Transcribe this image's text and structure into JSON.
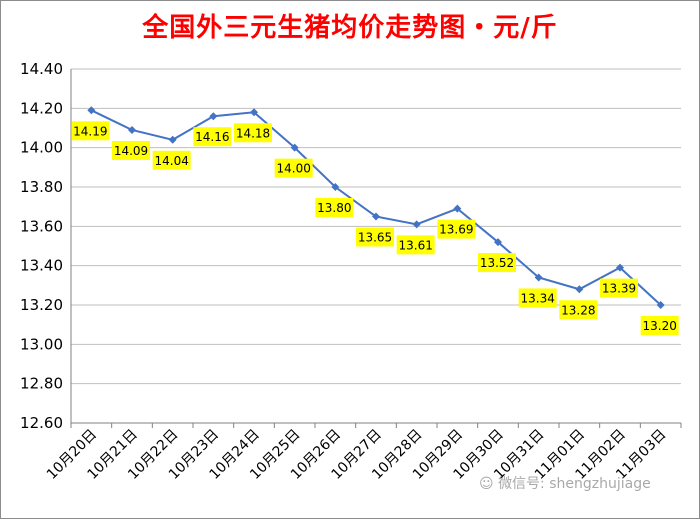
{
  "chart_data": {
    "type": "line",
    "title": "全国外三元生猪均价走势图・元/斤",
    "categories": [
      "10月20日",
      "10月21日",
      "10月22日",
      "10月23日",
      "10月24日",
      "10月25日",
      "10月26日",
      "10月27日",
      "10月28日",
      "10月29日",
      "10月30日",
      "10月31日",
      "11月01日",
      "11月02日",
      "11月03日"
    ],
    "values": [
      14.19,
      14.09,
      14.04,
      14.16,
      14.18,
      14.0,
      13.8,
      13.65,
      13.61,
      13.69,
      13.52,
      13.34,
      13.28,
      13.39,
      13.2
    ],
    "data_labels": [
      "14.19",
      "14.09",
      "14.04",
      "14.16",
      "14.18",
      "14.00",
      "13.80",
      "13.65",
      "13.61",
      "13.69",
      "13.52",
      "13.34",
      "13.28",
      "13.39",
      "13.20"
    ],
    "ylim": [
      12.6,
      14.4
    ],
    "yticks": [
      "12.60",
      "12.80",
      "13.00",
      "13.20",
      "13.40",
      "13.60",
      "13.80",
      "14.00",
      "14.20",
      "14.40"
    ],
    "xlabel": "",
    "ylabel": "",
    "grid": "horizontal",
    "colors": {
      "line": "#4472c4",
      "label_bg": "#ffff00",
      "title": "#ff0000",
      "grid": "#bfbfbf"
    }
  },
  "watermark": {
    "text": "微信号: shengzhujiage",
    "icon": "wechat-icon"
  }
}
